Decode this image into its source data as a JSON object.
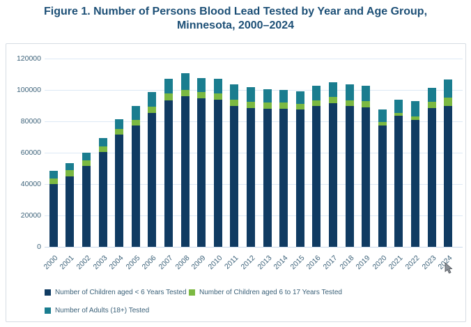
{
  "figure": {
    "title_line1": "Figure 1. Number of Persons Blood Lead Tested by Year and Age Group,",
    "title_line2": "Minnesota, 2000–2024"
  },
  "colors": {
    "title_text": "#1C4F76",
    "axis_text": "#3A6078",
    "gridline": "#DCE8F5",
    "chart_border": "#D6DCE3",
    "series_children_under6": "#103B62",
    "series_children_6to17": "#7CB942",
    "series_adults": "#1A7D8F"
  },
  "chart_data": {
    "type": "bar",
    "stacked": true,
    "title": "Figure 1. Number of Persons Blood Lead Tested by Year and Age Group, Minnesota, 2000–2024",
    "xlabel": "",
    "ylabel": "",
    "ylim": [
      0,
      120000
    ],
    "ytick_step": 20000,
    "yticks": [
      0,
      20000,
      40000,
      60000,
      80000,
      100000,
      120000
    ],
    "grid": true,
    "legend_position": "bottom",
    "categories": [
      "2000",
      "2001",
      "2002",
      "2003",
      "2004",
      "2005",
      "2006",
      "2007",
      "2008",
      "2009",
      "2010",
      "2011",
      "2012",
      "2013",
      "2014",
      "2015",
      "2016",
      "2017",
      "2018",
      "2019",
      "2020",
      "2021",
      "2022",
      "2023",
      "2024"
    ],
    "series": [
      {
        "name": "Number of Children aged < 6 Years Tested",
        "color": "#103B62",
        "values": [
          40000,
          45000,
          51500,
          60500,
          71500,
          77500,
          85500,
          93500,
          96000,
          94500,
          94000,
          90000,
          88500,
          88000,
          88000,
          87500,
          90000,
          91500,
          90000,
          89000,
          77500,
          83500,
          81000,
          88500,
          90000
        ]
      },
      {
        "name": "Number of Children aged 6 to 17 Years Tested",
        "color": "#7CB942",
        "values": [
          3500,
          4000,
          3500,
          3500,
          3500,
          3500,
          4000,
          4500,
          4000,
          4000,
          4000,
          4000,
          4000,
          4000,
          4000,
          3500,
          3500,
          4000,
          3500,
          4000,
          2000,
          2000,
          2000,
          4000,
          5000
        ]
      },
      {
        "name": "Number of Adults (18+) Tested",
        "color": "#1A7D8F",
        "values": [
          5000,
          4500,
          5000,
          5500,
          6500,
          9000,
          9000,
          9000,
          10500,
          9000,
          9000,
          9500,
          9500,
          8500,
          8000,
          8000,
          9000,
          9500,
          10000,
          9500,
          8000,
          8500,
          10000,
          9000,
          11500
        ]
      }
    ]
  }
}
